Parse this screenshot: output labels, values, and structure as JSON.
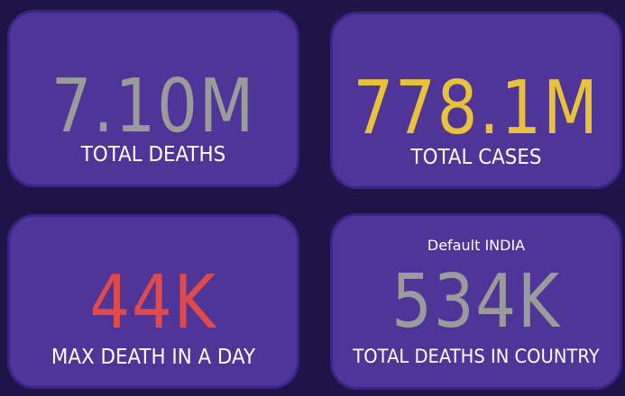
{
  "colors": {
    "background": "#1f1447",
    "card": "#4f3598",
    "card_border": "#3a2487",
    "gray_value": "#9b9b9b",
    "yellow_value": "#e8c33a",
    "red_value": "#e04a4a",
    "label": "#ffffff"
  },
  "cards": [
    {
      "value": "7.10M",
      "label": "TOTAL DEATHS",
      "value_color": "#9b9b9b"
    },
    {
      "value": "778.1M",
      "label": "TOTAL CASES",
      "value_color": "#e8c33a"
    },
    {
      "value": "44K",
      "label": "MAX DEATH IN A DAY",
      "value_color": "#e04a4a"
    },
    {
      "note": "Default INDIA",
      "value": "534K",
      "label": "TOTAL DEATHS IN COUNTRY",
      "value_color": "#9b9b9b"
    }
  ]
}
